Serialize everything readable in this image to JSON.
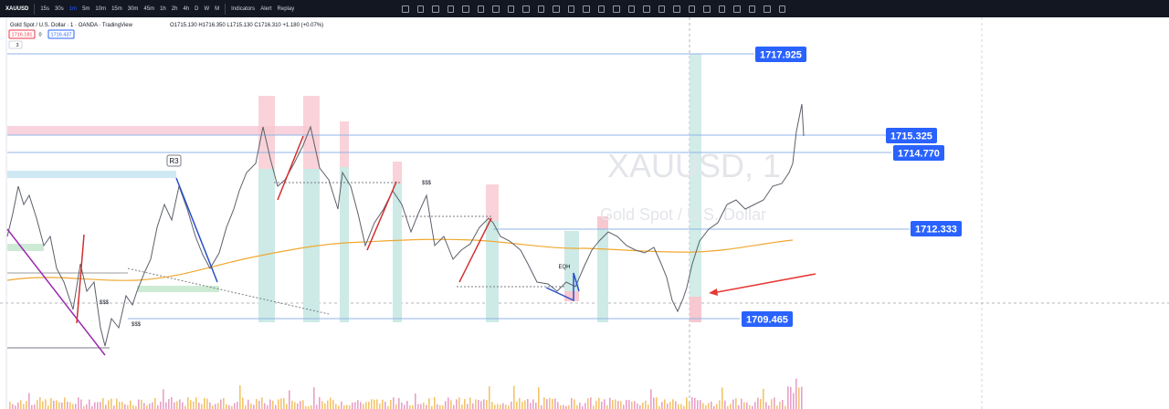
{
  "toolbar": {
    "symbol": "XAUUSD",
    "intervals": [
      "15s",
      "30s",
      "1m",
      "5m",
      "10m",
      "15m",
      "30m",
      "45m",
      "1h",
      "2h",
      "4h",
      "D",
      "W",
      "M"
    ],
    "indicators": "Indicators",
    "alert": "Alert",
    "replay": "Replay"
  },
  "legend": {
    "title": "Gold Spot / U.S. Dollar · 1 · OANDA · TradingView",
    "ohlc": "O1715.130 H1716.350 L1715.130 C1716.310 +1.180 (+0.07%)",
    "bid": "1716.181",
    "spread": "0",
    "ask": "1716.437",
    "collapse": "3"
  },
  "watermark": {
    "symbol": "XAUUSD, 1",
    "description": "Gold Spot / U.S. Dollar"
  },
  "annotations": {
    "resistance": "R3",
    "liquidity_high": "$$$",
    "liquidity_low_1": "$$$",
    "liquidity_low_2": "$$$",
    "equal_highs": "EQH"
  },
  "price_labels": [
    "1717.925",
    "1715.325",
    "1714.770",
    "1712.333",
    "1709.465"
  ]
}
